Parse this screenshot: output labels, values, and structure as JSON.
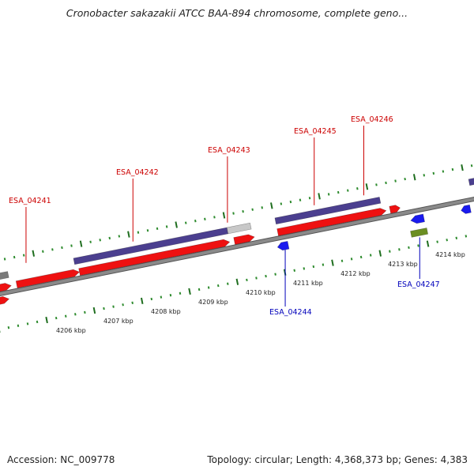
{
  "title": "Cronobacter sakazakii ATCC BAA-894 chromosome, complete geno...",
  "footer": {
    "accession": "Accession: NC_009778",
    "topology": "Topology: circular; Length: 4,368,373 bp; Genes: 4,383"
  },
  "colors": {
    "backbone": "#8a8a8a",
    "forward_gene": "#ee1111",
    "reverse_gene": "#1a1aee",
    "forward_label": "#cc0000",
    "reverse_label": "#0000bb",
    "tick": "#2e8b2e",
    "cds_forward": "#4b3f8f",
    "pseudo": "#c8c8c8",
    "green_feature": "#6b8e23"
  },
  "scale_labels": [
    "4206 kbp",
    "4207 kbp",
    "4208 kbp",
    "4209 kbp",
    "4210 kbp",
    "4211 kbp",
    "4212 kbp",
    "4213 kbp",
    "4214 kbp"
  ],
  "gene_labels": [
    {
      "name": "ESA_04241",
      "strand": "forward"
    },
    {
      "name": "ESA_04242",
      "strand": "forward"
    },
    {
      "name": "ESA_04243",
      "strand": "forward"
    },
    {
      "name": "ESA_04245",
      "strand": "forward"
    },
    {
      "name": "ESA_04246",
      "strand": "forward"
    },
    {
      "name": "ESA_04244",
      "strand": "reverse"
    },
    {
      "name": "ESA_04247",
      "strand": "reverse"
    }
  ]
}
